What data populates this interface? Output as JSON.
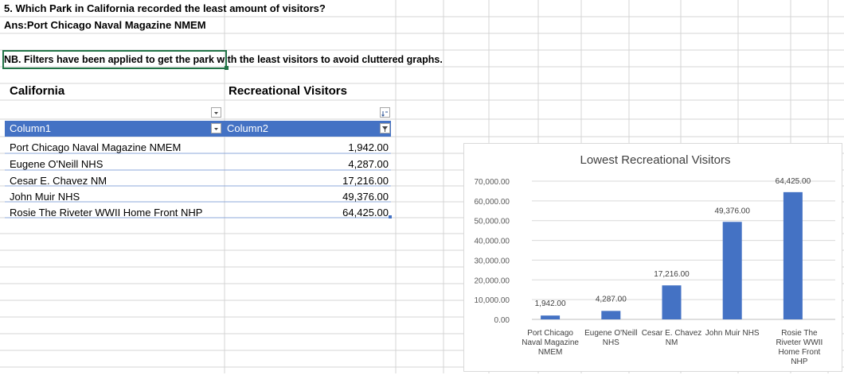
{
  "question": {
    "text": "5. Which Park in California recorded the least amount of visitors?",
    "answer": "Ans:Port Chicago Naval Magazine NMEM",
    "note": "NB. Filters have been applied to get the  park with the least visitors to avoid cluttered graphs."
  },
  "table": {
    "header_left": "California",
    "header_right": "Recreational Visitors",
    "col1": "Column1",
    "col2": "Column2",
    "rows": [
      {
        "name": "Port Chicago Naval Magazine NMEM",
        "value": "1,942.00"
      },
      {
        "name": "Eugene O'Neill NHS",
        "value": "4,287.00"
      },
      {
        "name": "Cesar E. Chavez NM",
        "value": "17,216.00"
      },
      {
        "name": "John Muir NHS",
        "value": "49,376.00"
      },
      {
        "name": "Rosie The Riveter WWII Home Front NHP",
        "value": "64,425.00"
      }
    ]
  },
  "colors": {
    "bar": "#4472c4",
    "header_fill": "#4472c4",
    "selection_border": "#217346"
  },
  "chart_data": {
    "type": "bar",
    "title": "Lowest Recreational Visitors",
    "categories": [
      "Port Chicago Naval Magazine NMEM",
      "Eugene O'Neill NHS",
      "Cesar E. Chavez NM",
      "John Muir NHS",
      "Rosie The Riveter WWII Home Front NHP"
    ],
    "values": [
      1942,
      4287,
      17216,
      49376,
      64425
    ],
    "data_labels": [
      "1,942.00",
      "4,287.00",
      "17,216.00",
      "49,376.00",
      "64,425.00"
    ],
    "ylim": [
      0,
      70000
    ],
    "yticks": [
      0,
      10000,
      20000,
      30000,
      40000,
      50000,
      60000,
      70000
    ],
    "ytick_labels": [
      "0.00",
      "10,000.00",
      "20,000.00",
      "30,000.00",
      "40,000.00",
      "50,000.00",
      "60,000.00",
      "70,000.00"
    ],
    "xlabel": "",
    "ylabel": "",
    "grid": true,
    "legend": "none"
  }
}
